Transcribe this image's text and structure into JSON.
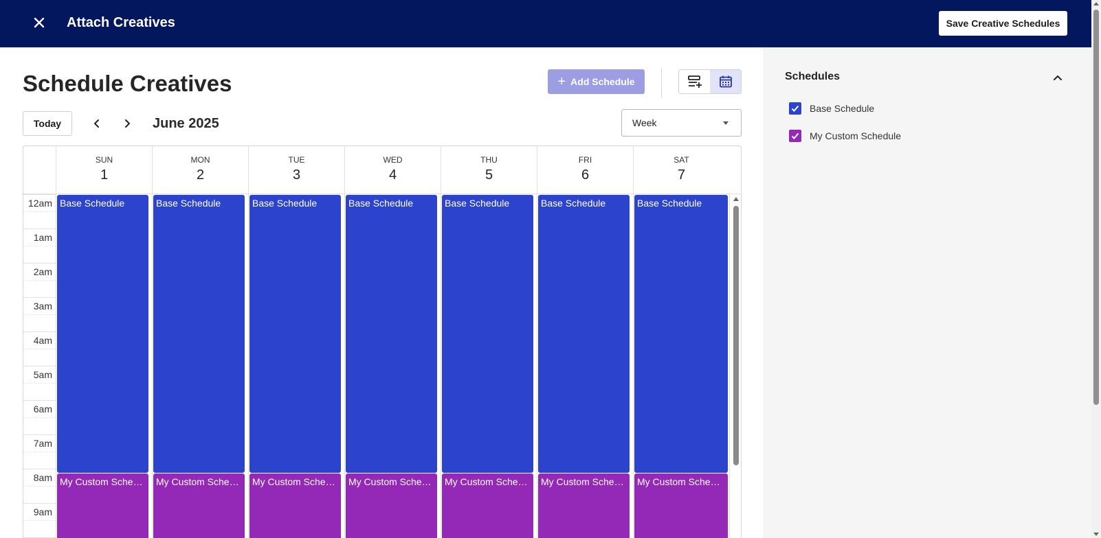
{
  "header": {
    "title": "Attach Creatives",
    "save_label": "Save Creative Schedules",
    "close_icon": "close-icon"
  },
  "main": {
    "title": "Schedule Creatives",
    "add_schedule_label": "Add Schedule",
    "today_label": "Today",
    "month_label": "June 2025",
    "view_select_value": "Week",
    "view_toggle": [
      "list-add-icon",
      "calendar-icon"
    ],
    "active_view": "calendar"
  },
  "calendar": {
    "days": [
      {
        "name": "SUN",
        "num": "1"
      },
      {
        "name": "MON",
        "num": "2"
      },
      {
        "name": "TUE",
        "num": "3"
      },
      {
        "name": "WED",
        "num": "4"
      },
      {
        "name": "THU",
        "num": "5"
      },
      {
        "name": "FRI",
        "num": "6"
      },
      {
        "name": "SAT",
        "num": "7"
      }
    ],
    "hours": [
      "12am",
      "1am",
      "2am",
      "3am",
      "4am",
      "5am",
      "6am",
      "7am",
      "8am",
      "9am"
    ],
    "event_labels": [
      [
        "Base Schedule",
        "My Custom Schedu..."
      ],
      [
        "Base Schedule",
        "My Custom Schedu..."
      ],
      [
        "Base Schedule",
        "My Custom Schedu..."
      ],
      [
        "Base Schedule",
        "My Custom Schedu..."
      ],
      [
        "Base Schedule",
        "My Custom Schedu..."
      ],
      [
        "Base Schedule",
        "My Custom Schedu..."
      ],
      [
        "Base Schedule",
        "My Custom Schedule"
      ]
    ]
  },
  "sidebar": {
    "title": "Schedules",
    "items": [
      {
        "label": "Base Schedule",
        "checked": true,
        "color": "#2c43cd"
      },
      {
        "label": "My Custom Schedule",
        "checked": true,
        "color": "#9529b7"
      }
    ]
  },
  "colors": {
    "header_bg": "#03175f",
    "base_schedule": "#2c43cd",
    "custom_schedule": "#9529b7",
    "add_button": "#9d9de3"
  }
}
